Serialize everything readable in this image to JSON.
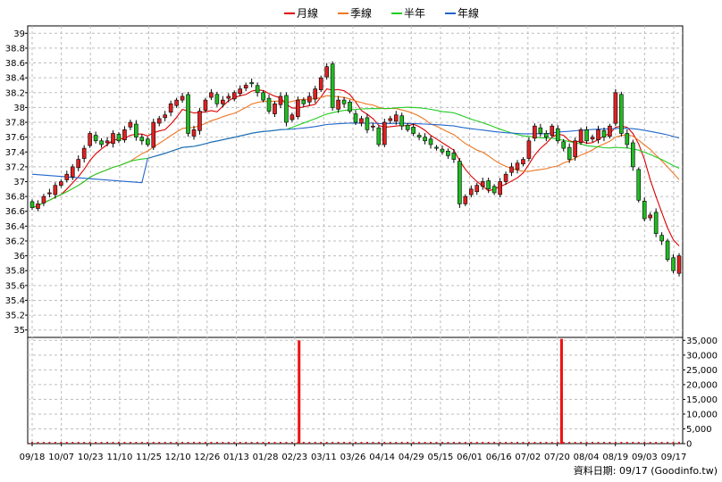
{
  "chart_data": {
    "type": "candlestick",
    "legend": [
      {
        "label": "月線",
        "color": "#dd0000"
      },
      {
        "label": "季線",
        "color": "#ee7722"
      },
      {
        "label": "半年",
        "color": "#22cc22"
      },
      {
        "label": "年線",
        "color": "#2266cc"
      }
    ],
    "price_axis": {
      "ticks": [
        "39",
        "38.8",
        "38.6",
        "38.4",
        "38.2",
        "38",
        "37.8",
        "37.6",
        "37.4",
        "37.2",
        "37",
        "36.8",
        "36.6",
        "36.4",
        "36.2",
        "36",
        "35.8",
        "35.6",
        "35.4",
        "35.2",
        "35"
      ],
      "range": [
        34.9,
        39.1
      ]
    },
    "volume_axis": {
      "ticks": [
        "35,000",
        "30,000",
        "25,000",
        "20,000",
        "15,000",
        "10,000",
        "5,000",
        "0"
      ],
      "range": [
        0,
        36000
      ]
    },
    "x_labels": [
      "09/18",
      "10/07",
      "10/23",
      "11/10",
      "11/25",
      "12/10",
      "12/26",
      "01/13",
      "01/28",
      "02/23",
      "03/11",
      "03/26",
      "04/14",
      "04/29",
      "05/15",
      "06/01",
      "06/16",
      "07/02",
      "07/20",
      "08/04",
      "08/19",
      "09/03",
      "09/17"
    ],
    "volume_spikes": [
      {
        "date": "02/23",
        "value": 35000
      },
      {
        "date": "07/20",
        "value": 35500
      }
    ],
    "candle_closes": [
      36.65,
      36.7,
      36.8,
      36.85,
      36.95,
      37.0,
      37.1,
      37.2,
      37.3,
      37.45,
      37.65,
      37.55,
      37.5,
      37.55,
      37.65,
      37.55,
      37.7,
      37.8,
      37.6,
      37.55,
      37.5,
      37.8,
      37.85,
      37.9,
      38.05,
      38.1,
      38.15,
      37.65,
      37.7,
      37.95,
      38.1,
      38.2,
      38.05,
      38.1,
      38.15,
      38.2,
      38.25,
      38.3,
      38.32,
      38.2,
      38.1,
      37.95,
      38.05,
      38.15,
      37.8,
      37.9,
      38.1,
      38.05,
      38.15,
      38.25,
      38.4,
      38.55,
      38.0,
      38.1,
      38.05,
      37.95,
      37.8,
      37.85,
      37.7,
      37.75,
      37.5,
      37.8,
      37.85,
      37.9,
      37.75,
      37.7,
      37.65,
      37.6,
      37.55,
      37.5,
      37.45,
      37.4,
      37.35,
      37.3,
      36.7,
      36.8,
      36.9,
      36.95,
      37.0,
      36.9,
      36.85,
      37.0,
      37.1,
      37.2,
      37.25,
      37.3,
      37.55,
      37.75,
      37.65,
      37.6,
      37.75,
      37.55,
      37.45,
      37.3,
      37.55,
      37.7,
      37.55,
      37.6,
      37.7,
      37.6,
      37.75,
      38.2,
      37.65,
      37.5,
      37.2,
      36.75,
      36.5,
      36.55,
      36.3,
      36.2,
      35.95,
      35.8,
      36.0
    ]
  },
  "footer": {
    "text": "資料日期: 09/17  (Goodinfo.tw)"
  }
}
